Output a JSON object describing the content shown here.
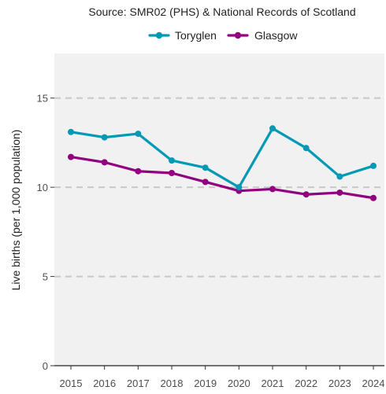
{
  "chart_data": {
    "type": "line",
    "title": "Source: SMR02 (PHS) & National Records of Scotland",
    "xlabel": "",
    "ylabel": "Live births (per 1,000 population)",
    "x": [
      2015,
      2016,
      2017,
      2018,
      2019,
      2020,
      2021,
      2022,
      2023,
      2024
    ],
    "ylim": [
      0,
      17.5
    ],
    "yticks": [
      0,
      5,
      10,
      15
    ],
    "grid": "dashed horizontal",
    "legend_position": "top",
    "series": [
      {
        "name": "Toryglen",
        "color": "#0199b5",
        "values": [
          13.1,
          12.8,
          13.0,
          11.5,
          11.1,
          10.0,
          13.3,
          12.2,
          10.6,
          11.2
        ]
      },
      {
        "name": "Glasgow",
        "color": "#92007f",
        "values": [
          11.7,
          11.4,
          10.9,
          10.8,
          10.3,
          9.8,
          9.9,
          9.6,
          9.7,
          9.4
        ]
      }
    ],
    "panel_background": "#f1f1f1",
    "grid_color": "#c8c8c8"
  }
}
